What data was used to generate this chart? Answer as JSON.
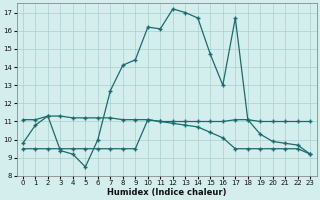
{
  "xlabel": "Humidex (Indice chaleur)",
  "bg_color": "#d4eeee",
  "grid_color": "#aacfcf",
  "line_color": "#1a6b6b",
  "xlim": [
    -0.5,
    23.5
  ],
  "ylim": [
    8,
    17.5
  ],
  "xticks": [
    0,
    1,
    2,
    3,
    4,
    5,
    6,
    7,
    8,
    9,
    10,
    11,
    12,
    13,
    14,
    15,
    16,
    17,
    18,
    19,
    20,
    21,
    22,
    23
  ],
  "yticks": [
    8,
    9,
    10,
    11,
    12,
    13,
    14,
    15,
    16,
    17
  ],
  "line1_x": [
    0,
    1,
    2,
    3,
    4,
    5,
    6,
    7,
    8,
    9,
    10,
    11,
    12,
    13,
    14,
    15,
    16,
    17,
    18,
    19,
    20,
    21,
    22,
    23
  ],
  "line1_y": [
    9.8,
    10.8,
    11.3,
    9.4,
    9.2,
    8.5,
    10.0,
    12.7,
    14.1,
    14.4,
    16.2,
    16.1,
    17.2,
    17.0,
    16.7,
    14.7,
    13.0,
    16.7,
    11.1,
    10.3,
    9.9,
    9.8,
    9.7,
    9.2
  ],
  "line2_x": [
    0,
    1,
    2,
    3,
    4,
    5,
    6,
    7,
    8,
    9,
    10,
    11,
    12,
    13,
    14,
    15,
    16,
    17,
    18,
    19,
    20,
    21,
    22,
    23
  ],
  "line2_y": [
    11.1,
    11.1,
    11.3,
    11.3,
    11.2,
    11.2,
    11.2,
    11.2,
    11.1,
    11.1,
    11.1,
    11.0,
    11.0,
    11.0,
    11.0,
    11.0,
    11.0,
    11.1,
    11.1,
    11.0,
    11.0,
    11.0,
    11.0,
    11.0
  ],
  "line3_x": [
    0,
    1,
    2,
    3,
    4,
    5,
    6,
    7,
    8,
    9,
    10,
    11,
    12,
    13,
    14,
    15,
    16,
    17,
    18,
    19,
    20,
    21,
    22,
    23
  ],
  "line3_y": [
    9.5,
    9.5,
    9.5,
    9.5,
    9.5,
    9.5,
    9.5,
    9.5,
    9.5,
    9.5,
    11.1,
    11.0,
    10.9,
    10.8,
    10.7,
    10.4,
    10.1,
    9.5,
    9.5,
    9.5,
    9.5,
    9.5,
    9.5,
    9.2
  ]
}
